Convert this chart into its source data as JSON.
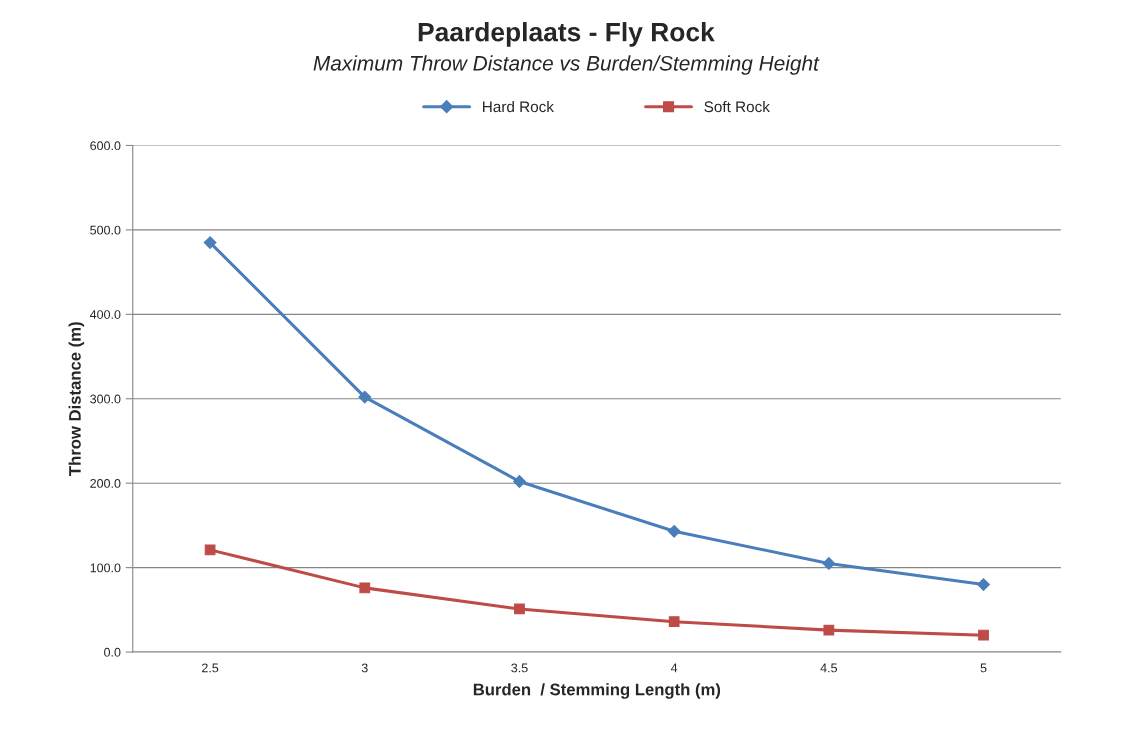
{
  "chart_data": {
    "type": "line",
    "title": "Paardeplaats - Fly Rock",
    "subtitle": "Maximum Throw Distance vs Burden/Stemming Height",
    "xlabel": "Burden  / Stemming Length (m)",
    "ylabel": "Throw Distance (m)",
    "categories": [
      "2.5",
      "3",
      "3.5",
      "4",
      "4.5",
      "5"
    ],
    "series": [
      {
        "name": "Hard Rock",
        "color": "#4a7ebb",
        "marker": "diamond",
        "values": [
          485,
          302,
          202,
          143,
          105,
          80
        ]
      },
      {
        "name": "Soft Rock",
        "color": "#be4b48",
        "marker": "square",
        "values": [
          121,
          76,
          51,
          36,
          26,
          20
        ]
      }
    ],
    "ylim": [
      0,
      600
    ],
    "yticks": [
      {
        "value": 0,
        "label": "0.0"
      },
      {
        "value": 100,
        "label": "100.0"
      },
      {
        "value": 200,
        "label": "200.0"
      },
      {
        "value": 300,
        "label": "300.0"
      },
      {
        "value": 400,
        "label": "400.0"
      },
      {
        "value": 500,
        "label": "500.0"
      },
      {
        "value": 600,
        "label": "600.0"
      }
    ],
    "grid": "y",
    "legend": "top",
    "line_style": "solid"
  }
}
